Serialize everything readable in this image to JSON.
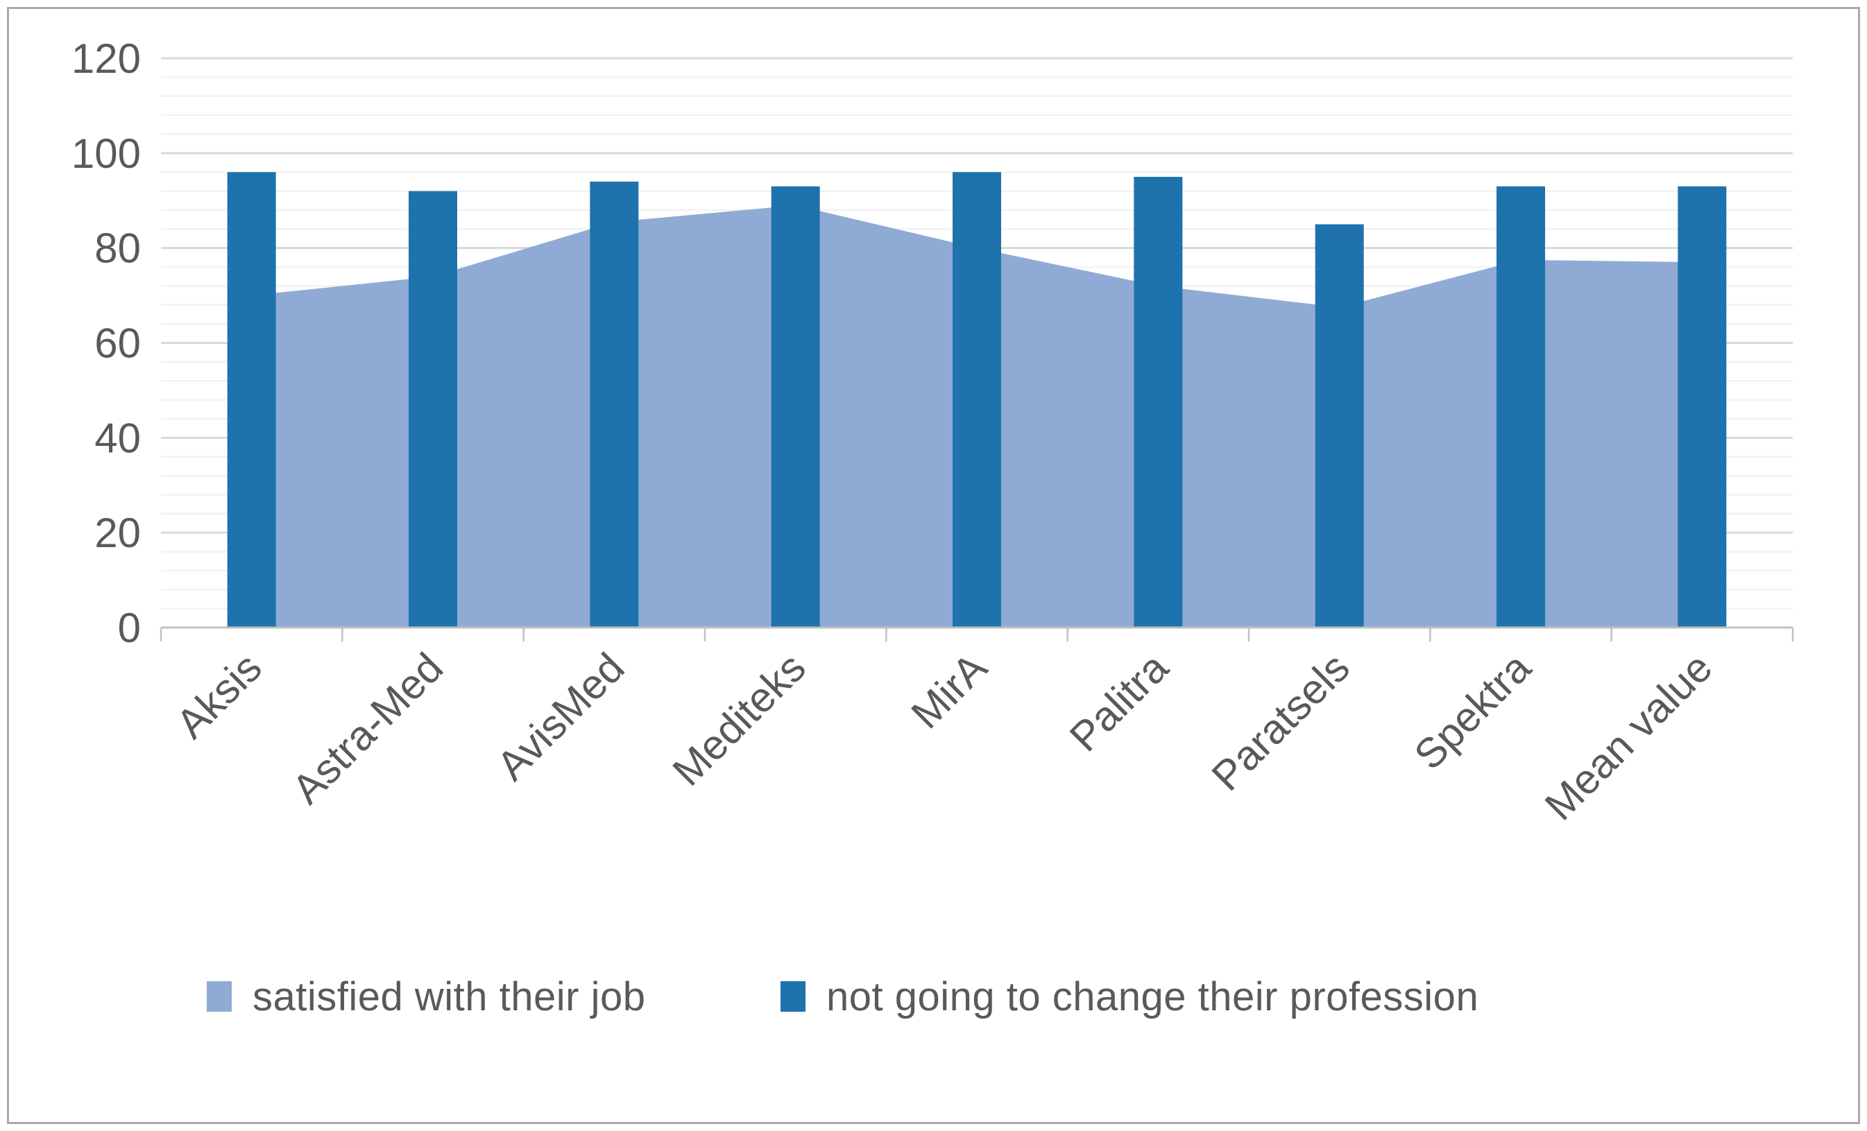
{
  "chart_data": {
    "type": "combo",
    "categories": [
      "Aksis",
      "Astra-Med",
      "AvisMed",
      "Mediteks",
      "MirA",
      "Palitra",
      "Paratsels",
      "Spektra",
      "Mean value"
    ],
    "series": [
      {
        "name": "satisfied with their job",
        "type": "area",
        "color": "#8fabd5",
        "values": [
          70,
          74,
          85.5,
          89,
          80,
          72,
          67.5,
          77.5,
          77
        ]
      },
      {
        "name": "not going to change their profession",
        "type": "bar",
        "color": "#1f73ad",
        "values": [
          96,
          92,
          94,
          93,
          96,
          95,
          85,
          93,
          93
        ]
      }
    ],
    "title": "",
    "xlabel": "",
    "ylabel": "",
    "ylim": [
      0,
      120
    ],
    "y_major_unit": 20,
    "y_minor_unit": 4,
    "y_tick_labels": [
      "0",
      "20",
      "40",
      "60",
      "80",
      "100",
      "120"
    ],
    "grid": "major and minor horizontal gridlines",
    "legend_position": "bottom"
  },
  "colors": {
    "bar_series": "#1f73ad",
    "area_series": "#8fabd5",
    "grid_major": "#d9d9d9",
    "grid_minor": "#f2f2f2",
    "axis_line": "#c0c0c0",
    "tick_text": "#595959",
    "page_border": "#a9a9a9"
  }
}
